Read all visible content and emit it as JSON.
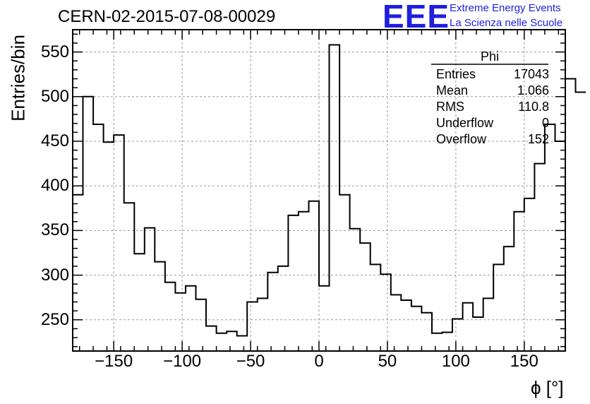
{
  "header": {
    "title": "CERN-02-2015-07-08-00029",
    "logo_mark": "EEE",
    "logo_line1": "Extreme Energy Events",
    "logo_line2": "La Scienza nelle Scuole"
  },
  "stats_box": {
    "name": "Phi",
    "rows": [
      {
        "label": "Entries",
        "value": "17043"
      },
      {
        "label": "Mean",
        "value": "1.066"
      },
      {
        "label": "RMS",
        "value": "110.8"
      },
      {
        "label": "Underflow",
        "value": "0"
      },
      {
        "label": "Overflow",
        "value": "152"
      }
    ]
  },
  "chart_data": {
    "type": "bar",
    "style": "step-histogram",
    "xlabel": "ϕ [°]",
    "ylabel": "Entries/bin",
    "xlim": [
      -180,
      180
    ],
    "ylim": [
      215,
      575
    ],
    "grid": true,
    "x_ticks": [
      "−150",
      "−100",
      "−50",
      "0",
      "50",
      "100",
      "150"
    ],
    "y_ticks": [
      "250",
      "300",
      "350",
      "400",
      "450",
      "500",
      "550"
    ],
    "bin_width": 7.5,
    "bin_edges_start": -180,
    "values": [
      390,
      500,
      469,
      449,
      457,
      381,
      324,
      353,
      315,
      292,
      280,
      288,
      273,
      243,
      235,
      237,
      232,
      270,
      274,
      303,
      310,
      367,
      371,
      383,
      288,
      558,
      390,
      352,
      336,
      312,
      301,
      278,
      272,
      265,
      258,
      235,
      236,
      251,
      269,
      253,
      274,
      312,
      332,
      371,
      386,
      425,
      469,
      450,
      520,
      505
    ]
  }
}
